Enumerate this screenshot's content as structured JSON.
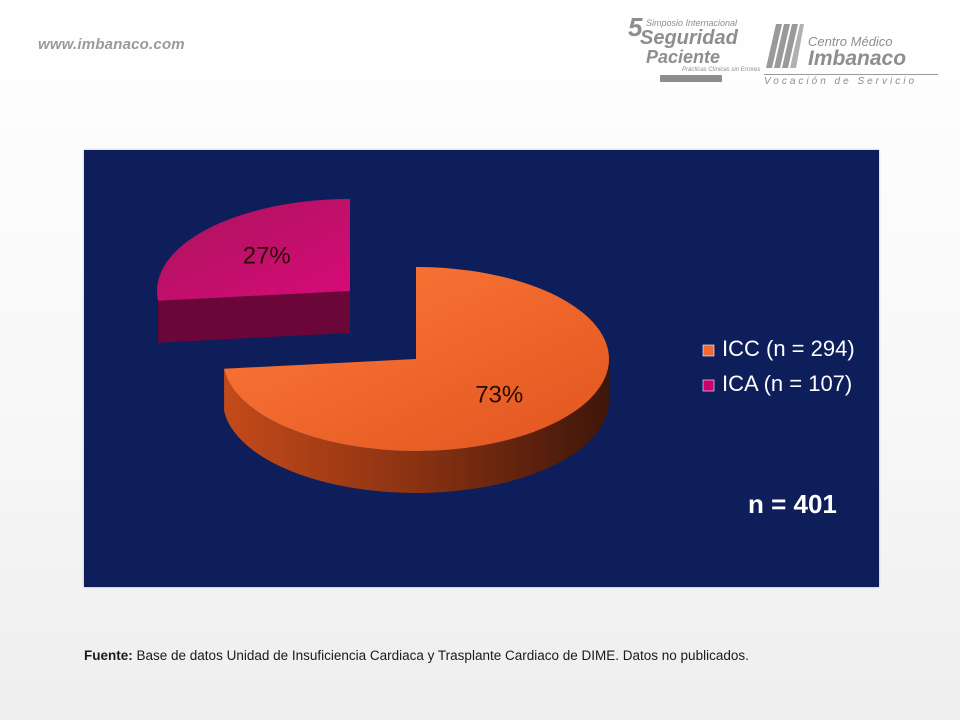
{
  "header": {
    "site_url": "www.imbanaco.com",
    "symposium_logo": {
      "number": "5",
      "line1": "Simposio Internacional",
      "line2": "Seguridad",
      "line3": "Paciente",
      "line4": "Prácticas Clínicas sin Errores"
    },
    "imbanaco_logo": {
      "line1": "Centro Médico",
      "line2": "Imbanaco",
      "tagline": "Vocación de Servicio"
    }
  },
  "colors": {
    "panel_background": "#0e1e5a",
    "icc": "#f26a2e",
    "ica": "#c8006e"
  },
  "chart_data": {
    "type": "pie",
    "style": "3d-exploded",
    "slices": [
      {
        "label": "ICC (n = 294)",
        "value": 294,
        "percent_label": "73%"
      },
      {
        "label": "ICA (n = 107)",
        "value": 107,
        "percent_label": "27%"
      }
    ],
    "legend_position": "right",
    "annotation": "n = 401"
  },
  "footnote": {
    "label": "Fuente:",
    "text": " Base de datos Unidad de Insuficiencia Cardiaca y Trasplante Cardiaco de DIME. Datos no publicados."
  }
}
